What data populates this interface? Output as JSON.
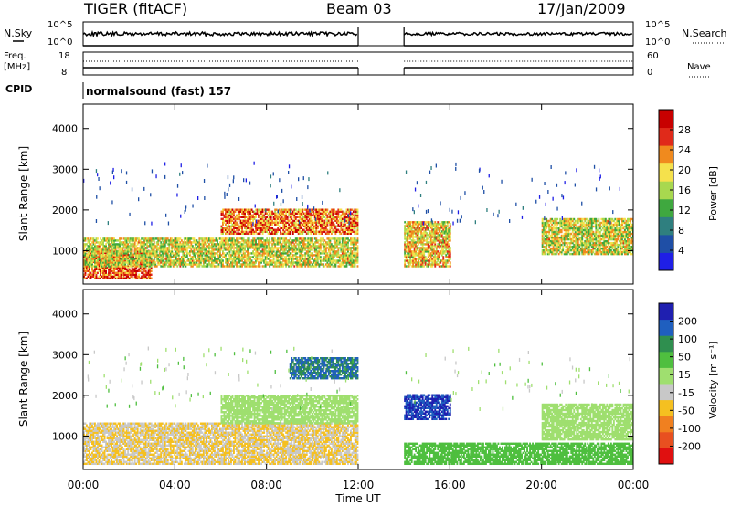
{
  "header": {
    "station": "TIGER (fitACF)",
    "beam": "Beam 03",
    "date": "17/Jan/2009"
  },
  "noise_panel": {
    "left_label": "N.Sky",
    "left_ticks": [
      "10^5",
      "10^0"
    ],
    "right_label": "N.Search",
    "right_ticks": [
      "10^5",
      "10^0"
    ]
  },
  "freq_panel": {
    "left_label_1": "Freq.",
    "left_label_2": "[MHz]",
    "left_ticks": [
      "18",
      "8"
    ],
    "right_label": "Nave",
    "right_ticks": [
      "60",
      "0"
    ]
  },
  "cpid": {
    "label": "CPID",
    "value": "normalsound (fast) 157"
  },
  "axes": {
    "ylabel": "Slant Range [km]",
    "yticks": [
      "1000",
      "2000",
      "3000",
      "4000"
    ],
    "xlabel": "Time UT",
    "xticks": [
      "00:00",
      "04:00",
      "08:00",
      "12:00",
      "16:00",
      "20:00",
      "00:00"
    ]
  },
  "power_colorbar": {
    "label": "Power [dB]",
    "ticks": [
      "4",
      "8",
      "12",
      "16",
      "20",
      "24",
      "28"
    ],
    "colors": [
      "#1f1fe6",
      "#1f4fa6",
      "#2f7f7f",
      "#3fa83f",
      "#a8d84f",
      "#f5e14c",
      "#f08a1e",
      "#e02a1a",
      "#c80000"
    ]
  },
  "velocity_colorbar": {
    "label": "Velocity [m s⁻¹]",
    "ticks": [
      "200",
      "100",
      "50",
      "15",
      "-15",
      "-50",
      "-100",
      "-200"
    ],
    "colors": [
      "#1f1fb0",
      "#1f5fbf",
      "#2f8f4f",
      "#4fbf3f",
      "#9fdf6f",
      "#c8c8c8",
      "#f5c020",
      "#f08020",
      "#e85020",
      "#e01010"
    ]
  },
  "chart_data": [
    {
      "type": "heatmap",
      "name": "Power",
      "xlabel": "Time UT",
      "ylabel": "Slant Range [km]",
      "xlim": [
        0,
        24
      ],
      "ylim": [
        180,
        4600
      ],
      "data_gap_hours": [
        12,
        14
      ],
      "echo_regions": [
        {
          "t": [
            0,
            3
          ],
          "range_km": [
            300,
            1000
          ],
          "power_db": 26
        },
        {
          "t": [
            0,
            12
          ],
          "range_km": [
            600,
            1300
          ],
          "power_db": 18
        },
        {
          "t": [
            6,
            12
          ],
          "range_km": [
            1400,
            2000
          ],
          "power_db": 24
        },
        {
          "t": [
            14,
            16
          ],
          "range_km": [
            600,
            1700
          ],
          "power_db": 20
        },
        {
          "t": [
            20,
            24
          ],
          "range_km": [
            900,
            1800
          ],
          "power_db": 18
        }
      ]
    },
    {
      "type": "heatmap",
      "name": "Velocity",
      "xlabel": "Time UT",
      "ylabel": "Slant Range [km]",
      "xlim": [
        0,
        24
      ],
      "ylim": [
        180,
        4600
      ],
      "data_gap_hours": [
        12,
        14
      ],
      "echo_regions": [
        {
          "t": [
            0,
            12
          ],
          "range_km": [
            300,
            1300
          ],
          "velocity_ms": -50
        },
        {
          "t": [
            6,
            12
          ],
          "range_km": [
            1300,
            2000
          ],
          "velocity_ms": 0
        },
        {
          "t": [
            9,
            12
          ],
          "range_km": [
            2400,
            2900
          ],
          "velocity_ms": 100
        },
        {
          "t": [
            14,
            16
          ],
          "range_km": [
            1400,
            2000
          ],
          "velocity_ms": 200
        },
        {
          "t": [
            14,
            24
          ],
          "range_km": [
            300,
            800
          ],
          "velocity_ms": 30
        },
        {
          "t": [
            20,
            24
          ],
          "range_km": [
            900,
            1800
          ],
          "velocity_ms": 0
        }
      ]
    }
  ]
}
